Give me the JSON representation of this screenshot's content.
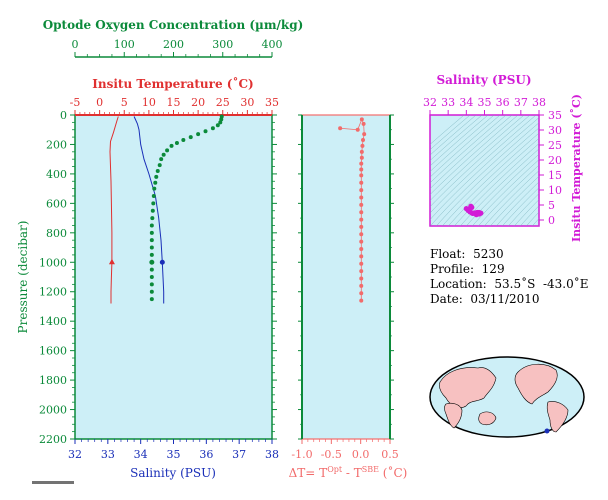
{
  "colors": {
    "panel_bg": "#cdeff7",
    "green": "#0b8a3a",
    "red": "#e03030",
    "salinity_blue": "#1a2fb8",
    "delta": "#f26b6b",
    "magenta": "#d21cd6",
    "dark": "#000000"
  },
  "info": {
    "float_label": "Float:",
    "float_value": "5230",
    "profile_label": "Profile:",
    "profile_value": "129",
    "location_label": "Location:",
    "location_value": "53.5˚S  -43.0˚E",
    "date_label": "Date:",
    "date_value": "03/11/2010"
  },
  "chart_data": [
    {
      "type": "line",
      "title": "",
      "axes": {
        "oxygen": {
          "label": "Optode Oxygen Concentration (µm/kg)",
          "range": [
            0,
            400
          ],
          "ticks": [
            0,
            100,
            200,
            300,
            400
          ]
        },
        "temperature": {
          "label": "Insitu Temperature (˚C)",
          "range": [
            -5,
            35
          ],
          "ticks": [
            -5,
            0,
            5,
            10,
            15,
            20,
            25,
            30,
            35
          ]
        },
        "salinity": {
          "label": "Salinity (PSU)",
          "range": [
            32,
            38
          ],
          "ticks": [
            32,
            33,
            34,
            35,
            36,
            37,
            38
          ]
        },
        "pressure": {
          "label": "Pressure (decibar)",
          "range": [
            0,
            2200
          ],
          "inverted": true,
          "ticks": [
            0,
            200,
            400,
            600,
            800,
            1000,
            1200,
            1400,
            1600,
            1800,
            2000,
            2200
          ]
        }
      },
      "series": [
        {
          "axis": "temperature",
          "style": "line",
          "points": [
            [
              3.8,
              10
            ],
            [
              3.5,
              40
            ],
            [
              2.8,
              120
            ],
            [
              2.2,
              180
            ],
            [
              2.1,
              250
            ],
            [
              2.2,
              350
            ],
            [
              2.3,
              450
            ],
            [
              2.4,
              600
            ],
            [
              2.5,
              800
            ],
            [
              2.5,
              1000
            ],
            [
              2.4,
              1100
            ],
            [
              2.3,
              1200
            ],
            [
              2.3,
              1280
            ]
          ],
          "marker": [
            2.5,
            1000
          ]
        },
        {
          "axis": "salinity",
          "style": "line",
          "points": [
            [
              33.8,
              10
            ],
            [
              33.9,
              60
            ],
            [
              33.95,
              100
            ],
            [
              34.0,
              200
            ],
            [
              34.1,
              300
            ],
            [
              34.25,
              400
            ],
            [
              34.45,
              550
            ],
            [
              34.55,
              700
            ],
            [
              34.62,
              850
            ],
            [
              34.66,
              1000
            ],
            [
              34.68,
              1100
            ],
            [
              34.7,
              1200
            ],
            [
              34.7,
              1280
            ]
          ],
          "marker": [
            34.66,
            1000
          ]
        },
        {
          "axis": "oxygen",
          "style": "dots",
          "points": [
            [
              298,
              10
            ],
            [
              297,
              30
            ],
            [
              295,
              50
            ],
            [
              290,
              70
            ],
            [
              280,
              90
            ],
            [
              265,
              110
            ],
            [
              250,
              130
            ],
            [
              235,
              150
            ],
            [
              220,
              170
            ],
            [
              207,
              190
            ],
            [
              196,
              210
            ],
            [
              187,
              240
            ],
            [
              180,
              270
            ],
            [
              175,
              300
            ],
            [
              172,
              340
            ],
            [
              168,
              380
            ],
            [
              165,
              420
            ],
            [
              163,
              460
            ],
            [
              161,
              500
            ],
            [
              160,
              550
            ],
            [
              159,
              600
            ],
            [
              158,
              650
            ],
            [
              157,
              700
            ],
            [
              156,
              750
            ],
            [
              156,
              800
            ],
            [
              156,
              850
            ],
            [
              156,
              900
            ],
            [
              156,
              950
            ],
            [
              156,
              1000
            ],
            [
              156,
              1050
            ],
            [
              156,
              1100
            ],
            [
              156,
              1150
            ],
            [
              156,
              1200
            ],
            [
              156,
              1250
            ]
          ],
          "marker": [
            156,
            1000
          ]
        }
      ]
    },
    {
      "type": "scatter",
      "title": "",
      "xlabel": "ΔT= T^Opt - T^SBE (˚C)",
      "xlabel_main": "ΔT= T",
      "xlabel_sup1": "Opt",
      "xlabel_mid": " - T",
      "xlabel_sup2": "SBE",
      "xlabel_tail": " (˚C)",
      "xlim": [
        -1.0,
        0.5
      ],
      "xticks": [
        -1.0,
        -0.5,
        0.0,
        0.5
      ],
      "xtick_labels": [
        "-1.0",
        "-0.5",
        "0.0",
        "0.5"
      ],
      "ylim": [
        0,
        2200
      ],
      "points": [
        [
          -0.35,
          90
        ],
        [
          -0.05,
          100
        ],
        [
          0.02,
          30
        ],
        [
          0.05,
          60
        ],
        [
          0.06,
          130
        ],
        [
          0.04,
          170
        ],
        [
          0.03,
          210
        ],
        [
          0.02,
          250
        ],
        [
          0.02,
          290
        ],
        [
          0.01,
          330
        ],
        [
          0.01,
          370
        ],
        [
          0.01,
          410
        ],
        [
          0.01,
          460
        ],
        [
          0.01,
          510
        ],
        [
          0.01,
          560
        ],
        [
          0.01,
          610
        ],
        [
          0.01,
          660
        ],
        [
          0.01,
          710
        ],
        [
          0.01,
          760
        ],
        [
          0.01,
          810
        ],
        [
          0.01,
          860
        ],
        [
          0.01,
          910
        ],
        [
          0.01,
          960
        ],
        [
          0.01,
          1010
        ],
        [
          0.01,
          1060
        ],
        [
          0.01,
          1110
        ],
        [
          0.01,
          1160
        ],
        [
          0.01,
          1210
        ],
        [
          0.01,
          1260
        ]
      ]
    },
    {
      "type": "scatter",
      "title": "",
      "xlabel": "Salinity (PSU)",
      "ylabel": "Insitu Temperature (˚C)",
      "xlim": [
        32,
        38
      ],
      "ylim": [
        -2,
        35
      ],
      "xticks": [
        32,
        33,
        34,
        35,
        36,
        37,
        38
      ],
      "yticks": [
        0,
        5,
        10,
        15,
        20,
        25,
        30,
        35
      ],
      "points": [
        [
          34.0,
          3.8
        ],
        [
          34.1,
          3.2
        ],
        [
          34.2,
          2.7
        ],
        [
          34.3,
          2.4
        ],
        [
          34.4,
          2.3
        ],
        [
          34.5,
          2.4
        ],
        [
          34.6,
          2.5
        ],
        [
          34.7,
          2.5
        ],
        [
          34.8,
          2.3
        ],
        [
          34.3,
          4.2
        ],
        [
          34.25,
          4.6
        ],
        [
          34.1,
          3.6
        ],
        [
          34.55,
          1.8
        ],
        [
          34.7,
          2.0
        ],
        [
          34.35,
          2.2
        ]
      ]
    }
  ]
}
